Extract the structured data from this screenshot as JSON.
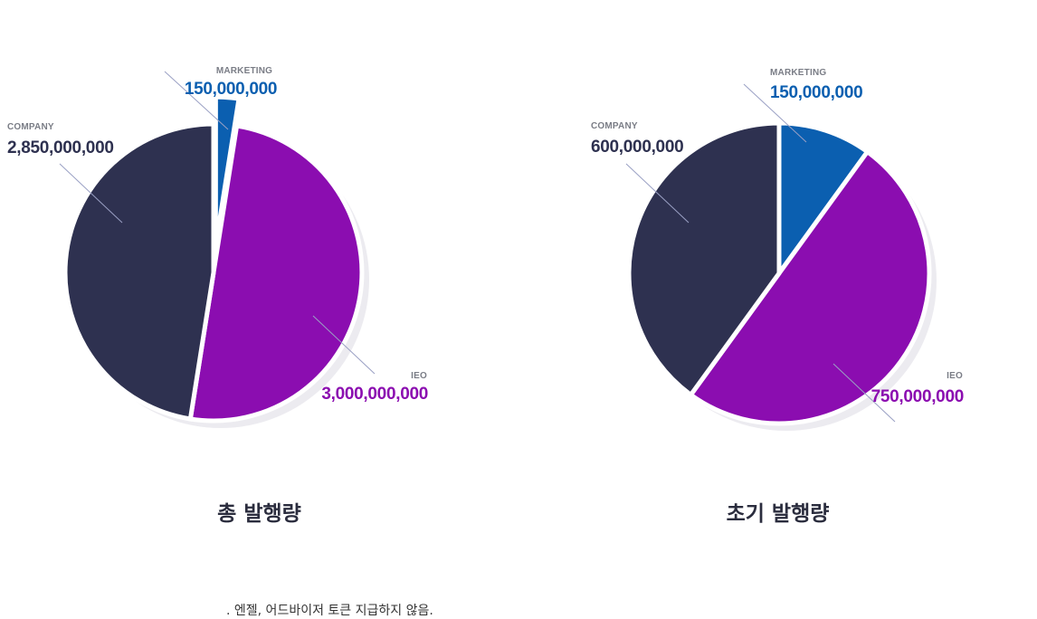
{
  "chart_data": [
    {
      "type": "pie",
      "title": "총 발행량",
      "slices": [
        {
          "label": "MARKETING",
          "value": 150000000,
          "value_text": "150,000,000",
          "color": "#0b5fb0",
          "exploded": true
        },
        {
          "label": "IEO",
          "value": 3000000000,
          "value_text": "3,000,000,000",
          "color": "#8b0db0"
        },
        {
          "label": "COMPANY",
          "value": 2850000000,
          "value_text": "2,850,000,000",
          "color": "#2e3150"
        }
      ]
    },
    {
      "type": "pie",
      "title": "초기 발행량",
      "slices": [
        {
          "label": "MARKETING",
          "value": 150000000,
          "value_text": "150,000,000",
          "color": "#0b5fb0"
        },
        {
          "label": "IEO",
          "value": 750000000,
          "value_text": "750,000,000",
          "color": "#8b0db0"
        },
        {
          "label": "COMPANY",
          "value": 600000000,
          "value_text": "600,000,000",
          "color": "#2e3150"
        }
      ]
    }
  ],
  "footnote": ". 엔젤, 어드바이저 토큰 지급하지 않음."
}
